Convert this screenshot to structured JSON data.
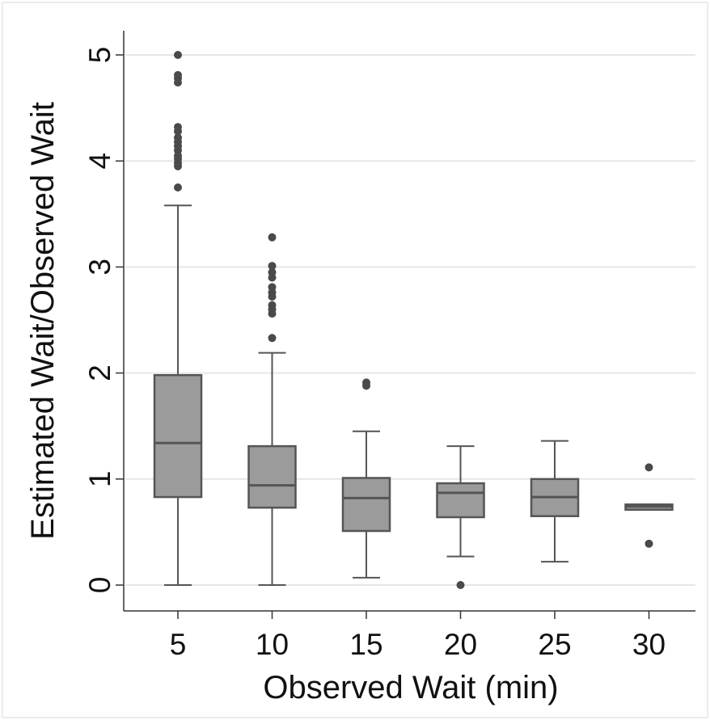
{
  "chart_data": {
    "type": "box",
    "xlabel": "Observed Wait (min)",
    "ylabel": "Estimated Wait/Observed Wait",
    "ylim": [
      0,
      5
    ],
    "yticks": [
      0,
      1,
      2,
      3,
      4,
      5
    ],
    "grid": true,
    "categories": [
      "5",
      "10",
      "15",
      "20",
      "25",
      "30"
    ],
    "boxes": [
      {
        "category": "5",
        "whisker_low": 0.0,
        "q1": 0.83,
        "median": 1.34,
        "q3": 1.98,
        "whisker_high": 3.58,
        "outliers": [
          3.75,
          3.95,
          3.98,
          4.02,
          4.05,
          4.1,
          4.14,
          4.18,
          4.22,
          4.28,
          4.32,
          4.74,
          4.78,
          4.81,
          5.0
        ]
      },
      {
        "category": "10",
        "whisker_low": 0.0,
        "q1": 0.73,
        "median": 0.94,
        "q3": 1.31,
        "whisker_high": 2.19,
        "outliers": [
          2.33,
          2.56,
          2.6,
          2.64,
          2.72,
          2.76,
          2.81,
          2.9,
          2.95,
          3.01,
          3.28
        ]
      },
      {
        "category": "15",
        "whisker_low": 0.07,
        "q1": 0.51,
        "median": 0.82,
        "q3": 1.01,
        "whisker_high": 1.45,
        "outliers": [
          1.88,
          1.91
        ]
      },
      {
        "category": "20",
        "whisker_low": 0.27,
        "q1": 0.64,
        "median": 0.87,
        "q3": 0.96,
        "whisker_high": 1.31,
        "outliers": [
          0.0
        ]
      },
      {
        "category": "25",
        "whisker_low": 0.22,
        "q1": 0.65,
        "median": 0.83,
        "q3": 1.0,
        "whisker_high": 1.36,
        "outliers": []
      },
      {
        "category": "30",
        "whisker_low": 0.71,
        "q1": 0.71,
        "median": 0.74,
        "q3": 0.76,
        "whisker_high": 0.76,
        "outliers": [
          0.39,
          1.11
        ]
      }
    ],
    "colors": {
      "box_fill": "#9b9b9b",
      "box_stroke": "#555555",
      "outlier": "#4a4a4a",
      "grid": "#e6e6e6",
      "axis": "#333333"
    }
  }
}
